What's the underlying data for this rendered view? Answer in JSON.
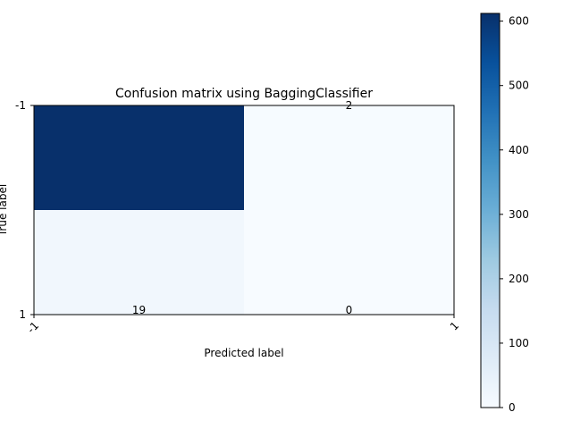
{
  "chart_data": {
    "type": "heatmap",
    "title": "Confusion matrix using BaggingClassifier",
    "xlabel": "Predicted label",
    "ylabel": "True label",
    "x_tick_labels": [
      "-1",
      "1"
    ],
    "y_tick_labels": [
      "-1",
      "1"
    ],
    "matrix": [
      [
        612,
        2
      ],
      [
        19,
        0
      ]
    ],
    "cell_labels": [
      [
        "",
        "2"
      ],
      [
        "19",
        "0"
      ]
    ],
    "colormap": "Blues",
    "color_range": [
      0,
      612
    ],
    "colorbar": {
      "ticks": [
        0,
        100,
        200,
        300,
        400,
        500,
        600
      ],
      "tick_labels": [
        "0",
        "100",
        "200",
        "300",
        "400",
        "500",
        "600"
      ]
    },
    "grid": false
  }
}
